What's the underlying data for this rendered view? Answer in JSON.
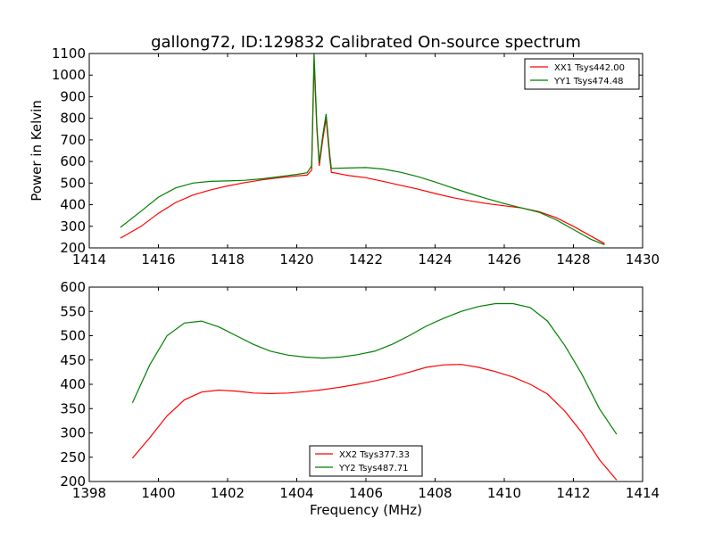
{
  "chart_data": [
    {
      "type": "line",
      "title": "gallong72, ID:129832 Calibrated On-source spectrum",
      "xlabel": "",
      "ylabel": "Power in Kelvin",
      "xlim": [
        1414,
        1430
      ],
      "ylim": [
        200,
        1100
      ],
      "xticks": [
        1414,
        1416,
        1418,
        1420,
        1422,
        1424,
        1426,
        1428,
        1430
      ],
      "yticks": [
        200,
        300,
        400,
        500,
        600,
        700,
        800,
        900,
        1000,
        1100
      ],
      "legend_position": "top-right",
      "series": [
        {
          "name": "XX1 Tsys442.00",
          "color": "#ff0000",
          "x": [
            1414.9,
            1415.5,
            1416.0,
            1416.5,
            1417.0,
            1417.5,
            1418.0,
            1418.5,
            1419.0,
            1419.5,
            1420.0,
            1420.3,
            1420.43,
            1420.5,
            1420.58,
            1420.65,
            1420.75,
            1420.85,
            1420.95,
            1421.0,
            1421.5,
            1422.0,
            1422.5,
            1423.0,
            1423.5,
            1424.0,
            1424.5,
            1425.0,
            1425.5,
            1426.0,
            1426.5,
            1427.0,
            1427.5,
            1428.0,
            1428.5,
            1428.9
          ],
          "y": [
            245,
            300,
            360,
            410,
            445,
            468,
            487,
            502,
            515,
            525,
            533,
            537,
            560,
            1060,
            750,
            580,
            700,
            800,
            620,
            550,
            535,
            525,
            508,
            490,
            472,
            452,
            433,
            418,
            405,
            395,
            385,
            368,
            340,
            300,
            255,
            220
          ]
        },
        {
          "name": "YY1 Tsys474.48",
          "color": "#008000",
          "x": [
            1414.9,
            1415.5,
            1416.0,
            1416.5,
            1417.0,
            1417.5,
            1418.0,
            1418.5,
            1419.0,
            1419.5,
            1420.0,
            1420.3,
            1420.43,
            1420.5,
            1420.58,
            1420.65,
            1420.75,
            1420.85,
            1420.95,
            1421.0,
            1421.5,
            1422.0,
            1422.5,
            1423.0,
            1423.5,
            1424.0,
            1424.5,
            1425.0,
            1425.5,
            1426.0,
            1426.5,
            1427.0,
            1427.5,
            1428.0,
            1428.5,
            1428.9
          ],
          "y": [
            295,
            370,
            435,
            478,
            500,
            508,
            510,
            513,
            520,
            530,
            540,
            548,
            580,
            1100,
            770,
            595,
            720,
            820,
            640,
            568,
            570,
            572,
            565,
            550,
            530,
            505,
            478,
            452,
            428,
            405,
            385,
            365,
            330,
            285,
            240,
            215
          ]
        }
      ]
    },
    {
      "type": "line",
      "title": "",
      "xlabel": "Frequency (MHz)",
      "ylabel": "",
      "xlim": [
        1398,
        1414
      ],
      "ylim": [
        200,
        600
      ],
      "xticks": [
        1398,
        1400,
        1402,
        1404,
        1406,
        1408,
        1410,
        1412,
        1414
      ],
      "yticks": [
        200,
        250,
        300,
        350,
        400,
        450,
        500,
        550,
        600
      ],
      "legend_position": "lower center",
      "series": [
        {
          "name": "XX2 Tsys377.33",
          "color": "#ff0000",
          "x": [
            1399.25,
            1399.75,
            1400.25,
            1400.75,
            1401.25,
            1401.75,
            1402.25,
            1402.75,
            1403.25,
            1403.75,
            1404.25,
            1404.75,
            1405.25,
            1405.75,
            1406.25,
            1406.75,
            1407.25,
            1407.75,
            1408.25,
            1408.75,
            1409.25,
            1409.75,
            1410.25,
            1410.75,
            1411.25,
            1411.75,
            1412.25,
            1412.75,
            1413.25
          ],
          "y": [
            248,
            290,
            335,
            368,
            384,
            388,
            386,
            382,
            381,
            382,
            385,
            389,
            394,
            400,
            407,
            415,
            425,
            435,
            440,
            441,
            435,
            426,
            415,
            400,
            380,
            345,
            300,
            245,
            203
          ]
        },
        {
          "name": "YY2 Tsys487.71",
          "color": "#008000",
          "x": [
            1399.25,
            1399.75,
            1400.25,
            1400.75,
            1401.25,
            1401.75,
            1402.25,
            1402.75,
            1403.25,
            1403.75,
            1404.25,
            1404.75,
            1405.25,
            1405.75,
            1406.25,
            1406.75,
            1407.25,
            1407.75,
            1408.25,
            1408.75,
            1409.25,
            1409.75,
            1410.25,
            1410.75,
            1411.25,
            1411.75,
            1412.25,
            1412.75,
            1413.25
          ],
          "y": [
            362,
            440,
            500,
            526,
            530,
            518,
            500,
            482,
            468,
            460,
            456,
            454,
            456,
            461,
            468,
            482,
            500,
            520,
            536,
            550,
            560,
            566,
            566,
            558,
            530,
            480,
            420,
            350,
            297
          ]
        }
      ]
    }
  ]
}
